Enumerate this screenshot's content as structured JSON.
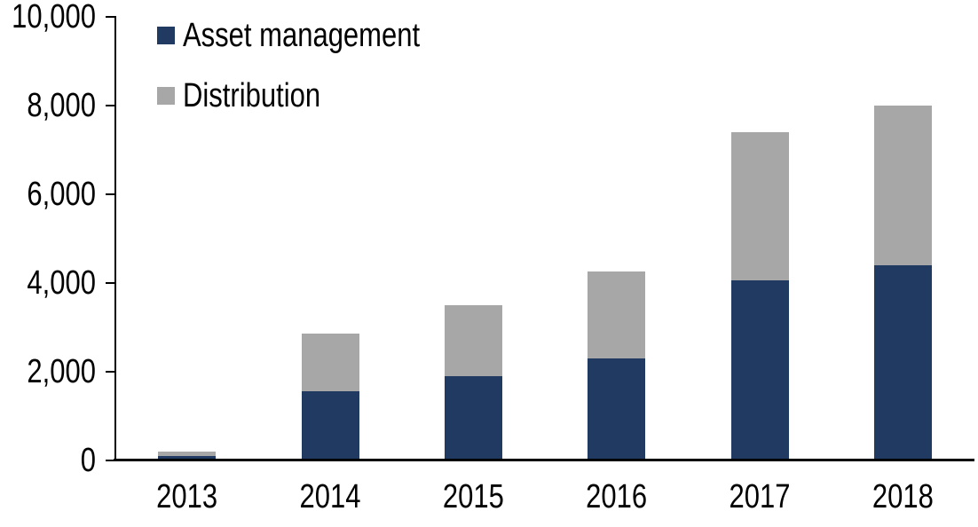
{
  "chart_data": {
    "type": "bar",
    "stacked": true,
    "title": "",
    "xlabel": "",
    "ylabel": "",
    "categories": [
      "2013",
      "2014",
      "2015",
      "2016",
      "2017",
      "2018"
    ],
    "series": [
      {
        "name": "Asset management",
        "color": "#203A61",
        "values": [
          100,
          1550,
          1900,
          2300,
          4050,
          4400
        ]
      },
      {
        "name": "Distribution",
        "color": "#A7A7A7",
        "values": [
          100,
          1300,
          1600,
          1950,
          3350,
          3600
        ]
      }
    ],
    "stack_totals": [
      200,
      2850,
      3500,
      4250,
      7400,
      8000
    ],
    "ylim": [
      0,
      10000
    ],
    "yticks": [
      0,
      2000,
      4000,
      6000,
      8000,
      10000
    ],
    "ytick_labels": [
      "0",
      "2,000",
      "4,000",
      "6,000",
      "8,000",
      "10,000"
    ],
    "grid": false,
    "legend_position": "inside-top-left",
    "axis_color": "#000000",
    "text_color": "#000000",
    "background_color": "#FFFFFF"
  }
}
